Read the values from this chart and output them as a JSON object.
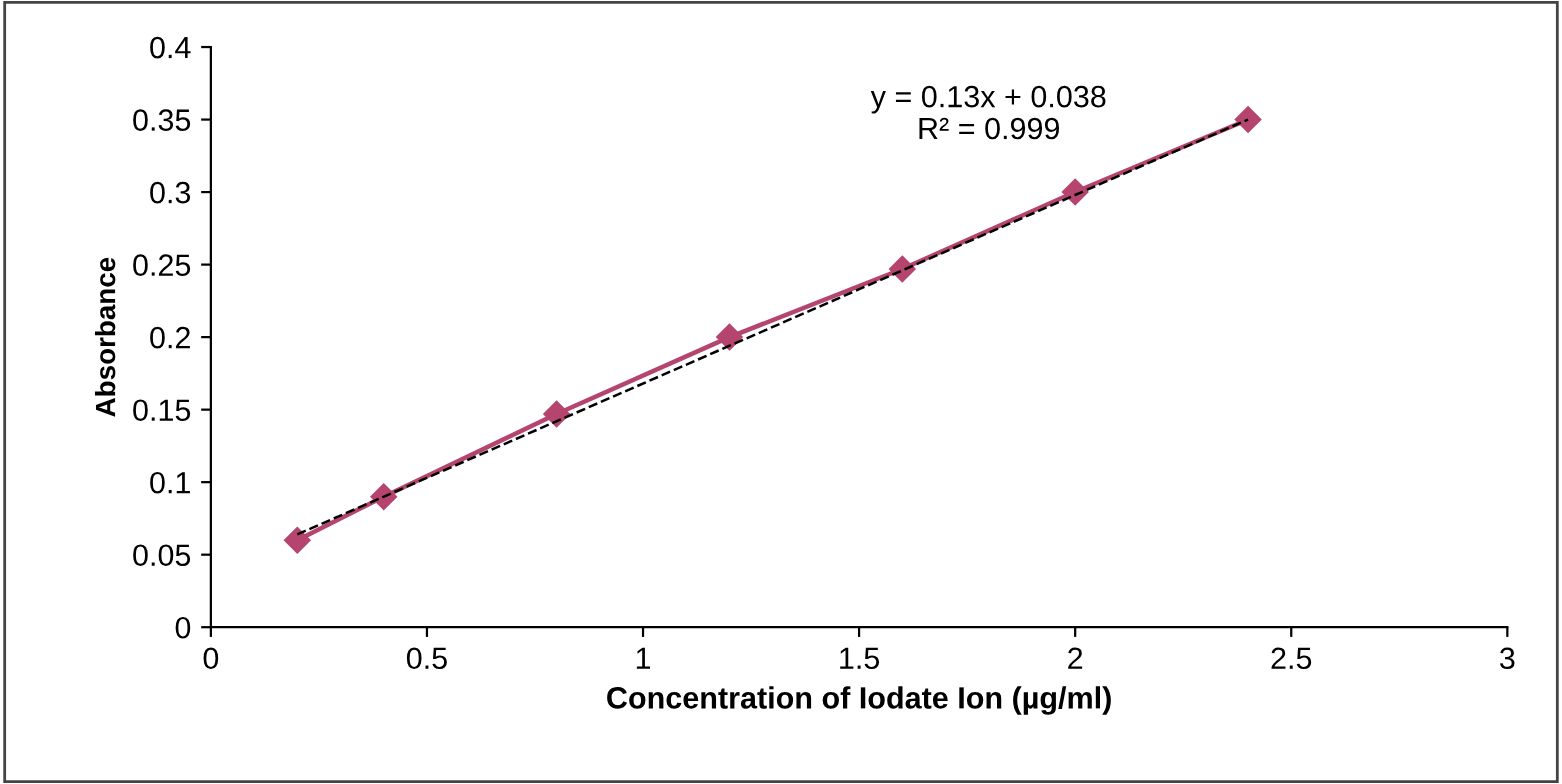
{
  "chart_data": {
    "type": "line",
    "xlabel": "Concentration of Iodate Ion (µg/ml)",
    "ylabel": "Absorbance",
    "annotations": [
      "y = 0.13x + 0.038",
      "R² = 0.999"
    ],
    "xlim": [
      0,
      3
    ],
    "xticks": [
      0,
      0.5,
      1,
      1.5,
      2,
      2.5,
      3
    ],
    "ylim": [
      0,
      0.4
    ],
    "yticks": [
      0,
      0.05,
      0.1,
      0.15,
      0.2,
      0.25,
      0.3,
      0.35,
      0.4
    ],
    "grid": false,
    "legend": false,
    "series": [
      {
        "color": "#b5456e",
        "marker": "diamond",
        "line_style": "solid",
        "x": [
          0.2,
          0.4,
          0.8,
          1.2,
          1.6,
          2.0,
          2.4
        ],
        "values": [
          0.06,
          0.09,
          0.147,
          0.2,
          0.247,
          0.3,
          0.35
        ]
      },
      {
        "color": "#000000",
        "marker": "none",
        "line_style": "dashed",
        "x": [
          0.2,
          2.4
        ],
        "values": [
          0.064,
          0.35
        ]
      }
    ]
  }
}
